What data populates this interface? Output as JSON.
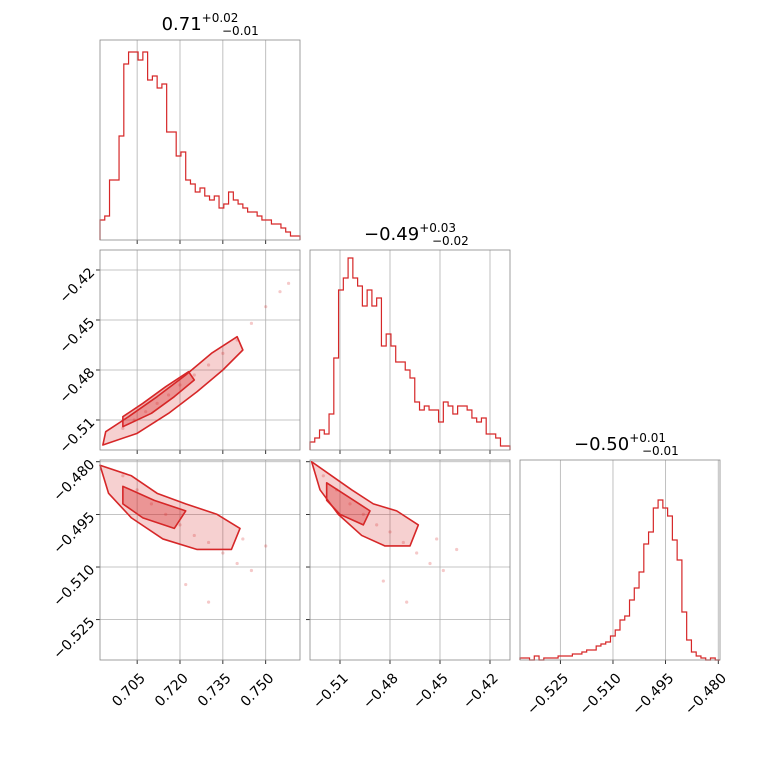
{
  "chart_data": {
    "type": "corner",
    "color": "#d62728",
    "grid": true,
    "parameters": [
      {
        "title": {
          "median": "0.71",
          "plus": "+0.02",
          "minus": "−0.01"
        },
        "range": [
          0.692,
          0.762
        ],
        "ticks": [
          0.705,
          0.72,
          0.735,
          0.75
        ],
        "tick_labels": [
          "0.705",
          "0.720",
          "0.735",
          "0.750"
        ]
      },
      {
        "title": {
          "median": "−0.49",
          "plus": "+0.03",
          "minus": "−0.02"
        },
        "range": [
          -0.528,
          -0.408
        ],
        "ticks": [
          -0.51,
          -0.48,
          -0.45,
          -0.42
        ],
        "tick_labels": [
          "−0.51",
          "−0.48",
          "−0.45",
          "−0.42"
        ]
      },
      {
        "title": {
          "median": "−0.50",
          "plus": "+0.01",
          "minus": "−0.01"
        },
        "range": [
          -0.5365,
          -0.4795
        ],
        "ticks": [
          -0.525,
          -0.51,
          -0.495,
          -0.48
        ],
        "tick_labels": [
          "−0.525",
          "−0.510",
          "−0.495",
          "−0.480"
        ]
      }
    ],
    "histograms": [
      [
        0.1,
        0.12,
        0.3,
        0.3,
        0.52,
        0.88,
        0.94,
        0.94,
        0.9,
        0.94,
        0.8,
        0.82,
        0.76,
        0.78,
        0.54,
        0.54,
        0.42,
        0.44,
        0.3,
        0.28,
        0.24,
        0.26,
        0.22,
        0.2,
        0.22,
        0.16,
        0.18,
        0.24,
        0.2,
        0.18,
        0.16,
        0.14,
        0.14,
        0.12,
        0.1,
        0.1,
        0.08,
        0.08,
        0.06,
        0.04,
        0.02,
        0.02
      ],
      [
        0.04,
        0.06,
        0.1,
        0.08,
        0.18,
        0.46,
        0.8,
        0.86,
        0.96,
        0.86,
        0.82,
        0.72,
        0.8,
        0.72,
        0.76,
        0.52,
        0.58,
        0.52,
        0.44,
        0.44,
        0.4,
        0.36,
        0.24,
        0.2,
        0.22,
        0.2,
        0.2,
        0.14,
        0.24,
        0.22,
        0.18,
        0.22,
        0.22,
        0.2,
        0.16,
        0.14,
        0.16,
        0.08,
        0.08,
        0.06,
        0.02,
        0.02
      ],
      [
        0.01,
        0.01,
        0.0,
        0.02,
        0.0,
        0.01,
        0.01,
        0.01,
        0.02,
        0.02,
        0.02,
        0.03,
        0.03,
        0.04,
        0.05,
        0.05,
        0.07,
        0.08,
        0.09,
        0.12,
        0.15,
        0.2,
        0.22,
        0.3,
        0.36,
        0.44,
        0.58,
        0.64,
        0.76,
        0.8,
        0.76,
        0.72,
        0.6,
        0.5,
        0.24,
        0.1,
        0.04,
        0.02,
        0.01,
        0.0,
        0.01,
        0.0
      ]
    ],
    "pairs": [
      {
        "x_param": 0,
        "y_param": 1,
        "points": [
          [
            0.7,
            -0.515
          ],
          [
            0.704,
            -0.51
          ],
          [
            0.708,
            -0.505
          ],
          [
            0.712,
            -0.5
          ],
          [
            0.716,
            -0.495
          ],
          [
            0.72,
            -0.489
          ],
          [
            0.725,
            -0.483
          ],
          [
            0.73,
            -0.477
          ],
          [
            0.735,
            -0.47
          ],
          [
            0.74,
            -0.462
          ],
          [
            0.745,
            -0.452
          ],
          [
            0.75,
            -0.442
          ],
          [
            0.755,
            -0.433
          ],
          [
            0.758,
            -0.428
          ]
        ],
        "contours": [
          [
            [
              0.693,
              -0.525
            ],
            [
              0.705,
              -0.518
            ],
            [
              0.716,
              -0.506
            ],
            [
              0.726,
              -0.493
            ],
            [
              0.735,
              -0.48
            ],
            [
              0.742,
              -0.468
            ],
            [
              0.74,
              -0.46
            ],
            [
              0.731,
              -0.47
            ],
            [
              0.722,
              -0.483
            ],
            [
              0.712,
              -0.496
            ],
            [
              0.702,
              -0.508
            ],
            [
              0.694,
              -0.517
            ]
          ],
          [
            [
              0.7,
              -0.514
            ],
            [
              0.71,
              -0.506
            ],
            [
              0.718,
              -0.496
            ],
            [
              0.725,
              -0.486
            ],
            [
              0.723,
              -0.481
            ],
            [
              0.715,
              -0.49
            ],
            [
              0.707,
              -0.5
            ],
            [
              0.7,
              -0.508
            ]
          ]
        ]
      },
      {
        "x_param": 0,
        "y_param": 2,
        "points": [
          [
            0.7,
            -0.484
          ],
          [
            0.705,
            -0.488
          ],
          [
            0.71,
            -0.492
          ],
          [
            0.715,
            -0.495
          ],
          [
            0.72,
            -0.498
          ],
          [
            0.725,
            -0.501
          ],
          [
            0.73,
            -0.503
          ],
          [
            0.735,
            -0.506
          ],
          [
            0.74,
            -0.509
          ],
          [
            0.745,
            -0.511
          ],
          [
            0.742,
            -0.502
          ],
          [
            0.75,
            -0.504
          ],
          [
            0.73,
            -0.52
          ],
          [
            0.722,
            -0.515
          ]
        ],
        "contours": [
          [
            [
              0.692,
              -0.481
            ],
            [
              0.703,
              -0.484
            ],
            [
              0.712,
              -0.489
            ],
            [
              0.722,
              -0.492
            ],
            [
              0.733,
              -0.495
            ],
            [
              0.741,
              -0.499
            ],
            [
              0.738,
              -0.505
            ],
            [
              0.726,
              -0.505
            ],
            [
              0.714,
              -0.502
            ],
            [
              0.703,
              -0.496
            ],
            [
              0.695,
              -0.489
            ]
          ],
          [
            [
              0.7,
              -0.487
            ],
            [
              0.711,
              -0.491
            ],
            [
              0.722,
              -0.494
            ],
            [
              0.718,
              -0.499
            ],
            [
              0.707,
              -0.496
            ],
            [
              0.7,
              -0.492
            ]
          ]
        ]
      },
      {
        "x_param": 1,
        "y_param": 2,
        "points": [
          [
            -0.52,
            -0.484
          ],
          [
            -0.512,
            -0.488
          ],
          [
            -0.504,
            -0.492
          ],
          [
            -0.496,
            -0.495
          ],
          [
            -0.488,
            -0.498
          ],
          [
            -0.48,
            -0.5
          ],
          [
            -0.472,
            -0.503
          ],
          [
            -0.464,
            -0.506
          ],
          [
            -0.456,
            -0.509
          ],
          [
            -0.448,
            -0.511
          ],
          [
            -0.452,
            -0.502
          ],
          [
            -0.44,
            -0.505
          ],
          [
            -0.47,
            -0.52
          ],
          [
            -0.484,
            -0.514
          ]
        ],
        "contours": [
          [
            [
              -0.527,
              -0.48
            ],
            [
              -0.515,
              -0.484
            ],
            [
              -0.503,
              -0.488
            ],
            [
              -0.49,
              -0.492
            ],
            [
              -0.476,
              -0.494
            ],
            [
              -0.463,
              -0.498
            ],
            [
              -0.468,
              -0.504
            ],
            [
              -0.483,
              -0.504
            ],
            [
              -0.497,
              -0.501
            ],
            [
              -0.511,
              -0.495
            ],
            [
              -0.522,
              -0.488
            ]
          ],
          [
            [
              -0.518,
              -0.486
            ],
            [
              -0.505,
              -0.49
            ],
            [
              -0.492,
              -0.494
            ],
            [
              -0.496,
              -0.498
            ],
            [
              -0.51,
              -0.495
            ],
            [
              -0.518,
              -0.491
            ]
          ]
        ]
      }
    ]
  }
}
